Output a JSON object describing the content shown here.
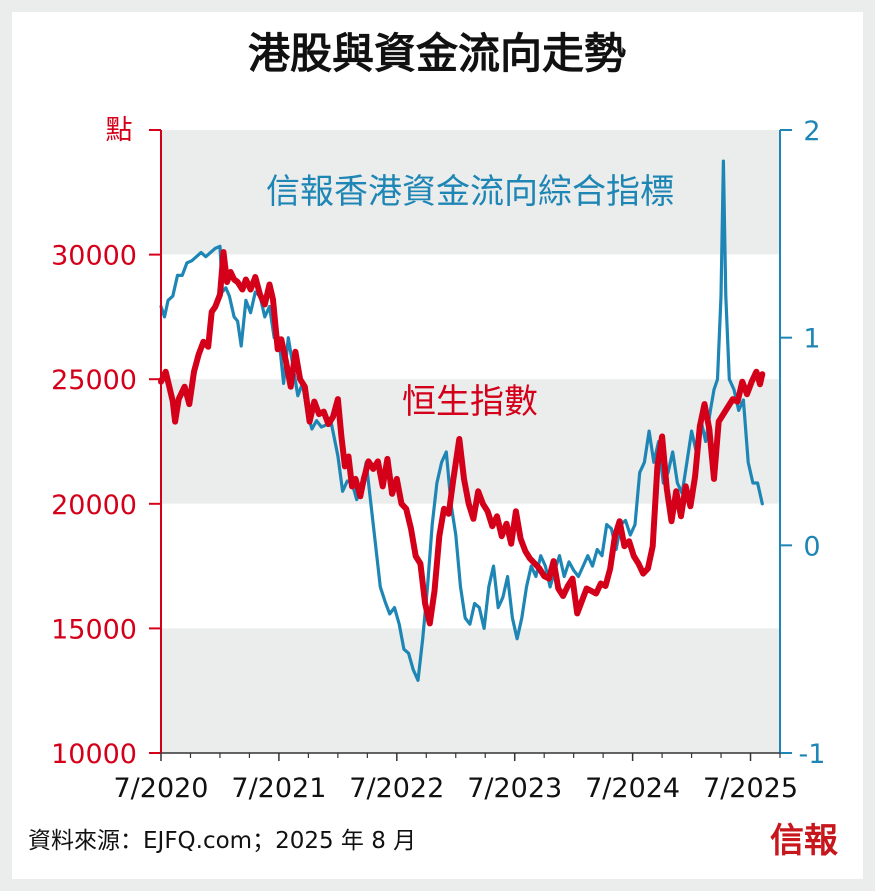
{
  "chart_data": {
    "type": "line",
    "title": "港股與資金流向走勢",
    "left_axis": {
      "label": "點",
      "range": [
        10000,
        35000
      ],
      "ticks": [
        10000,
        15000,
        20000,
        25000,
        30000
      ],
      "tick_labels": [
        "10000",
        "15000",
        "20000",
        "25000",
        "30000"
      ],
      "color": "#d4001a"
    },
    "right_axis": {
      "range": [
        -1,
        2
      ],
      "ticks": [
        -1,
        0,
        1,
        2
      ],
      "tick_labels": [
        "-1",
        "0",
        "1",
        "2"
      ],
      "color": "#1e86b5"
    },
    "x_axis": {
      "range": [
        2020.5,
        2025.75
      ],
      "ticks": [
        2020.5,
        2021.5,
        2022.5,
        2023.5,
        2024.5,
        2025.5
      ],
      "tick_labels": [
        "7/2020",
        "7/2021",
        "7/2022",
        "7/2023",
        "7/2024",
        "7/2025"
      ]
    },
    "grid": "alternating horizontal bands",
    "series": [
      {
        "name": "恒生指數",
        "axis": "left",
        "color": "#d4001a",
        "points": [
          [
            2020.5,
            24900
          ],
          [
            2020.54,
            25300
          ],
          [
            2020.57,
            24700
          ],
          [
            2020.6,
            24100
          ],
          [
            2020.62,
            23300
          ],
          [
            2020.65,
            24200
          ],
          [
            2020.7,
            24700
          ],
          [
            2020.74,
            24000
          ],
          [
            2020.78,
            25300
          ],
          [
            2020.82,
            26000
          ],
          [
            2020.86,
            26500
          ],
          [
            2020.9,
            26300
          ],
          [
            2020.93,
            27700
          ],
          [
            2020.96,
            27900
          ],
          [
            2021.0,
            28400
          ],
          [
            2021.03,
            30100
          ],
          [
            2021.06,
            28900
          ],
          [
            2021.09,
            29300
          ],
          [
            2021.12,
            29000
          ],
          [
            2021.15,
            28900
          ],
          [
            2021.19,
            28600
          ],
          [
            2021.22,
            29000
          ],
          [
            2021.26,
            28600
          ],
          [
            2021.3,
            29100
          ],
          [
            2021.34,
            28400
          ],
          [
            2021.38,
            28000
          ],
          [
            2021.42,
            28800
          ],
          [
            2021.45,
            28200
          ],
          [
            2021.49,
            26200
          ],
          [
            2021.52,
            26600
          ],
          [
            2021.56,
            25700
          ],
          [
            2021.6,
            24700
          ],
          [
            2021.64,
            26100
          ],
          [
            2021.68,
            25000
          ],
          [
            2021.72,
            24700
          ],
          [
            2021.76,
            23300
          ],
          [
            2021.8,
            24100
          ],
          [
            2021.84,
            23600
          ],
          [
            2021.88,
            23700
          ],
          [
            2021.92,
            23200
          ],
          [
            2021.96,
            23500
          ],
          [
            2022.0,
            24200
          ],
          [
            2022.03,
            22700
          ],
          [
            2022.06,
            21500
          ],
          [
            2022.09,
            21900
          ],
          [
            2022.12,
            20700
          ],
          [
            2022.15,
            21000
          ],
          [
            2022.19,
            20300
          ],
          [
            2022.22,
            21000
          ],
          [
            2022.26,
            21700
          ],
          [
            2022.3,
            21400
          ],
          [
            2022.34,
            21700
          ],
          [
            2022.38,
            20700
          ],
          [
            2022.42,
            21800
          ],
          [
            2022.46,
            20400
          ],
          [
            2022.5,
            21000
          ],
          [
            2022.54,
            20000
          ],
          [
            2022.58,
            19800
          ],
          [
            2022.62,
            19000
          ],
          [
            2022.66,
            17900
          ],
          [
            2022.7,
            17600
          ],
          [
            2022.74,
            16000
          ],
          [
            2022.78,
            15200
          ],
          [
            2022.82,
            16500
          ],
          [
            2022.86,
            18700
          ],
          [
            2022.9,
            19800
          ],
          [
            2022.94,
            19600
          ],
          [
            2022.98,
            21000
          ],
          [
            2023.03,
            22600
          ],
          [
            2023.07,
            21000
          ],
          [
            2023.11,
            20000
          ],
          [
            2023.15,
            19400
          ],
          [
            2023.19,
            20500
          ],
          [
            2023.23,
            20000
          ],
          [
            2023.27,
            19700
          ],
          [
            2023.31,
            19100
          ],
          [
            2023.35,
            19500
          ],
          [
            2023.39,
            18700
          ],
          [
            2023.43,
            19200
          ],
          [
            2023.47,
            18400
          ],
          [
            2023.51,
            19700
          ],
          [
            2023.55,
            18600
          ],
          [
            2023.59,
            18100
          ],
          [
            2023.63,
            17800
          ],
          [
            2023.67,
            17600
          ],
          [
            2023.71,
            17400
          ],
          [
            2023.75,
            17100
          ],
          [
            2023.79,
            17000
          ],
          [
            2023.83,
            17700
          ],
          [
            2023.87,
            16600
          ],
          [
            2023.91,
            16300
          ],
          [
            2023.95,
            16700
          ],
          [
            2023.99,
            17000
          ],
          [
            2024.03,
            15600
          ],
          [
            2024.07,
            16100
          ],
          [
            2024.11,
            16600
          ],
          [
            2024.15,
            16500
          ],
          [
            2024.19,
            16400
          ],
          [
            2024.23,
            16800
          ],
          [
            2024.27,
            16700
          ],
          [
            2024.31,
            17400
          ],
          [
            2024.35,
            18700
          ],
          [
            2024.39,
            19300
          ],
          [
            2024.43,
            18300
          ],
          [
            2024.47,
            18500
          ],
          [
            2024.51,
            17900
          ],
          [
            2024.55,
            17600
          ],
          [
            2024.59,
            17200
          ],
          [
            2024.63,
            17400
          ],
          [
            2024.67,
            18300
          ],
          [
            2024.71,
            21500
          ],
          [
            2024.75,
            22700
          ],
          [
            2024.79,
            20600
          ],
          [
            2024.83,
            19300
          ],
          [
            2024.87,
            20500
          ],
          [
            2024.91,
            19500
          ],
          [
            2024.95,
            20700
          ],
          [
            2024.99,
            19900
          ],
          [
            2025.03,
            21100
          ],
          [
            2025.07,
            23100
          ],
          [
            2025.11,
            24000
          ],
          [
            2025.15,
            23000
          ],
          [
            2025.19,
            21000
          ],
          [
            2025.23,
            23300
          ],
          [
            2025.27,
            23600
          ],
          [
            2025.31,
            23900
          ],
          [
            2025.35,
            24200
          ],
          [
            2025.39,
            24100
          ],
          [
            2025.43,
            24900
          ],
          [
            2025.47,
            24400
          ],
          [
            2025.51,
            24900
          ],
          [
            2025.55,
            25300
          ],
          [
            2025.58,
            24800
          ],
          [
            2025.6,
            25200
          ]
        ]
      },
      {
        "name": "信報香港資金流向綜合指標",
        "axis": "right",
        "color": "#1e86b5",
        "points": [
          [
            2020.5,
            1.15
          ],
          [
            2020.53,
            1.1
          ],
          [
            2020.56,
            1.18
          ],
          [
            2020.6,
            1.2
          ],
          [
            2020.64,
            1.3
          ],
          [
            2020.68,
            1.3
          ],
          [
            2020.72,
            1.36
          ],
          [
            2020.76,
            1.37
          ],
          [
            2020.8,
            1.39
          ],
          [
            2020.84,
            1.41
          ],
          [
            2020.88,
            1.39
          ],
          [
            2020.92,
            1.41
          ],
          [
            2020.96,
            1.43
          ],
          [
            2021.0,
            1.44
          ],
          [
            2021.02,
            1.22
          ],
          [
            2021.05,
            1.24
          ],
          [
            2021.08,
            1.2
          ],
          [
            2021.12,
            1.1
          ],
          [
            2021.15,
            1.08
          ],
          [
            2021.18,
            0.96
          ],
          [
            2021.22,
            1.18
          ],
          [
            2021.26,
            1.12
          ],
          [
            2021.3,
            1.22
          ],
          [
            2021.34,
            1.2
          ],
          [
            2021.38,
            1.1
          ],
          [
            2021.42,
            1.15
          ],
          [
            2021.46,
            1.0
          ],
          [
            2021.5,
            1.0
          ],
          [
            2021.54,
            0.78
          ],
          [
            2021.58,
            1.0
          ],
          [
            2021.62,
            0.86
          ],
          [
            2021.66,
            0.72
          ],
          [
            2021.7,
            0.78
          ],
          [
            2021.74,
            0.64
          ],
          [
            2021.78,
            0.56
          ],
          [
            2021.82,
            0.6
          ],
          [
            2021.86,
            0.57
          ],
          [
            2021.9,
            0.58
          ],
          [
            2021.94,
            0.6
          ],
          [
            2022.0,
            0.43
          ],
          [
            2022.04,
            0.26
          ],
          [
            2022.08,
            0.31
          ],
          [
            2022.12,
            0.3
          ],
          [
            2022.16,
            0.22
          ],
          [
            2022.2,
            0.28
          ],
          [
            2022.24,
            0.4
          ],
          [
            2022.28,
            0.2
          ],
          [
            2022.32,
            0.0
          ],
          [
            2022.36,
            -0.2
          ],
          [
            2022.4,
            -0.27
          ],
          [
            2022.44,
            -0.33
          ],
          [
            2022.48,
            -0.3
          ],
          [
            2022.52,
            -0.38
          ],
          [
            2022.56,
            -0.5
          ],
          [
            2022.6,
            -0.52
          ],
          [
            2022.64,
            -0.6
          ],
          [
            2022.68,
            -0.65
          ],
          [
            2022.72,
            -0.45
          ],
          [
            2022.76,
            -0.2
          ],
          [
            2022.8,
            0.1
          ],
          [
            2022.84,
            0.3
          ],
          [
            2022.88,
            0.4
          ],
          [
            2022.92,
            0.45
          ],
          [
            2022.96,
            0.2
          ],
          [
            2023.0,
            0.05
          ],
          [
            2023.04,
            -0.2
          ],
          [
            2023.08,
            -0.35
          ],
          [
            2023.12,
            -0.38
          ],
          [
            2023.16,
            -0.28
          ],
          [
            2023.2,
            -0.3
          ],
          [
            2023.24,
            -0.4
          ],
          [
            2023.28,
            -0.2
          ],
          [
            2023.32,
            -0.1
          ],
          [
            2023.36,
            -0.3
          ],
          [
            2023.4,
            -0.25
          ],
          [
            2023.44,
            -0.15
          ],
          [
            2023.48,
            -0.35
          ],
          [
            2023.52,
            -0.45
          ],
          [
            2023.56,
            -0.35
          ],
          [
            2023.6,
            -0.2
          ],
          [
            2023.64,
            -0.1
          ],
          [
            2023.68,
            -0.15
          ],
          [
            2023.72,
            -0.05
          ],
          [
            2023.76,
            -0.1
          ],
          [
            2023.8,
            -0.2
          ],
          [
            2023.84,
            -0.12
          ],
          [
            2023.88,
            -0.05
          ],
          [
            2023.92,
            -0.15
          ],
          [
            2023.96,
            -0.08
          ],
          [
            2024.0,
            -0.12
          ],
          [
            2024.04,
            -0.15
          ],
          [
            2024.08,
            -0.1
          ],
          [
            2024.12,
            -0.05
          ],
          [
            2024.16,
            -0.1
          ],
          [
            2024.2,
            -0.02
          ],
          [
            2024.24,
            -0.05
          ],
          [
            2024.28,
            0.1
          ],
          [
            2024.32,
            0.08
          ],
          [
            2024.36,
            -0.02
          ],
          [
            2024.4,
            0.1
          ],
          [
            2024.44,
            0.12
          ],
          [
            2024.48,
            0.05
          ],
          [
            2024.52,
            0.1
          ],
          [
            2024.56,
            0.35
          ],
          [
            2024.6,
            0.4
          ],
          [
            2024.64,
            0.55
          ],
          [
            2024.68,
            0.4
          ],
          [
            2024.72,
            0.5
          ],
          [
            2024.76,
            0.3
          ],
          [
            2024.8,
            0.35
          ],
          [
            2024.84,
            0.45
          ],
          [
            2024.88,
            0.3
          ],
          [
            2024.92,
            0.25
          ],
          [
            2024.96,
            0.4
          ],
          [
            2025.0,
            0.55
          ],
          [
            2025.04,
            0.45
          ],
          [
            2025.08,
            0.6
          ],
          [
            2025.12,
            0.5
          ],
          [
            2025.16,
            0.65
          ],
          [
            2025.19,
            0.75
          ],
          [
            2025.22,
            0.8
          ],
          [
            2025.25,
            1.2
          ],
          [
            2025.27,
            1.85
          ],
          [
            2025.29,
            1.2
          ],
          [
            2025.32,
            0.8
          ],
          [
            2025.36,
            0.75
          ],
          [
            2025.4,
            0.65
          ],
          [
            2025.44,
            0.7
          ],
          [
            2025.48,
            0.4
          ],
          [
            2025.52,
            0.3
          ],
          [
            2025.56,
            0.3
          ],
          [
            2025.6,
            0.2
          ]
        ]
      }
    ]
  },
  "labels": {
    "title": "港股與資金流向走勢",
    "left_unit": "點",
    "series_blue_label": "信報香港資金流向綜合指標",
    "series_red_label": "恒生指數",
    "source": "資料來源：EJFQ.com；2025 年 8 月",
    "logo": "信報"
  }
}
